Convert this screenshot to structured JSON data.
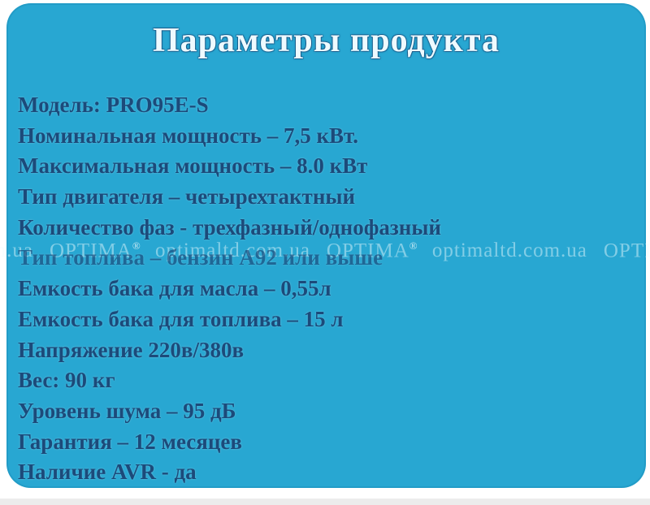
{
  "card": {
    "title": "Параметры продукта",
    "background_color": "#28a7d2",
    "title_color": "#eefaff",
    "text_color": "#1c4a7a",
    "specs": [
      "Модель: PRO95E-S",
      "Номинальная мощность – 7,5 кВт.",
      "Максимальная мощность – 8.0 кВт",
      "Тип двигателя – четырехтактный",
      "Количество фаз - трехфазный/однофазный",
      "Тип топлива – бензин А92 или выше",
      "Емкость бака для масла – 0,55л",
      "Емкость бака для топлива – 15 л",
      "Напряжение 220в/380в",
      "Вес: 90 кг",
      "Уровень шума – 95 дБ",
      "Гарантия – 12 месяцев",
      "Наличие AVR - да"
    ],
    "washed_line_index": 5
  },
  "watermark": {
    "site": "optimaltd.com.ua",
    "brand": "OPTIMA",
    "registered_mark": "®"
  }
}
